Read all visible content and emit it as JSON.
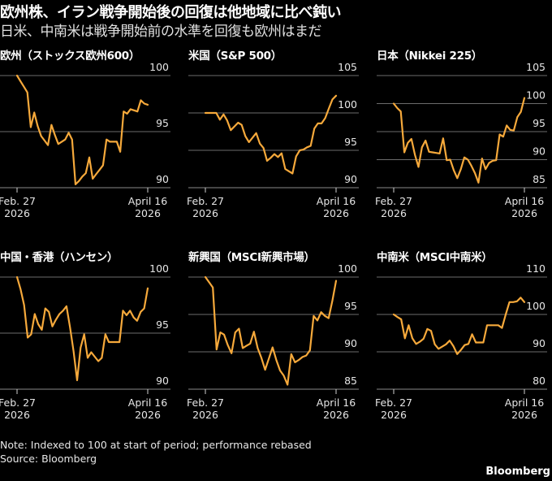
{
  "header": {
    "title": "欧州株、イラン戦争開始後の回復は他地域に比べ鈍い",
    "subtitle": "日米、中南米は戦争開始前の水準を回復も欧州はまだ"
  },
  "footer": {
    "note": "Note: Indexed to 100 at start of period; performance rebased",
    "source": "Source: Bloomberg",
    "brand": "Bloomberg"
  },
  "colors": {
    "line": "#f6a93b",
    "grid": "#6b6b6b",
    "background": "#000000"
  },
  "chart_data": [
    {
      "type": "line",
      "title": "欧州（ストックス欧州600）",
      "x_tick_labels": [
        [
          "Feb. 27",
          "2026"
        ],
        [
          "April 16",
          "2026"
        ]
      ],
      "y_ticks": [
        90,
        95,
        100
      ],
      "ylim": [
        90,
        100
      ],
      "grid": true,
      "values": [
        100,
        99.5,
        99.0,
        98.5,
        95.4,
        96.7,
        95.5,
        94.6,
        94.2,
        93.8,
        95.6,
        94.7,
        93.9,
        94.1,
        94.3,
        94.9,
        94.3,
        90.3,
        90.6,
        91.0,
        91.3,
        92.7,
        90.8,
        91.2,
        91.6,
        92.0,
        94.3,
        94.1,
        94.1,
        94.1,
        93.2,
        96.8,
        96.6,
        97.0,
        96.9,
        96.8,
        97.8,
        97.5,
        97.4
      ]
    },
    {
      "type": "line",
      "title": "米国（S&P 500）",
      "x_tick_labels": [
        [
          "Feb. 27",
          "2026"
        ],
        [
          "April 16",
          "2026"
        ]
      ],
      "y_ticks": [
        90,
        95,
        100,
        105
      ],
      "ylim": [
        90,
        105
      ],
      "grid": true,
      "values": [
        100,
        100,
        100,
        100,
        99.1,
        99.8,
        99.0,
        97.7,
        98.2,
        98.7,
        98.4,
        96.9,
        96.1,
        96.7,
        97.3,
        95.9,
        95.3,
        93.6,
        94.0,
        94.5,
        94.1,
        94.6,
        92.5,
        92.2,
        91.9,
        94.2,
        95.0,
        95.1,
        95.4,
        95.6,
        97.9,
        98.6,
        98.6,
        99.3,
        100.6,
        101.8,
        102.3
      ]
    },
    {
      "type": "line",
      "title": "日本（Nikkei 225）",
      "x_tick_labels": [
        [
          "Feb. 27",
          "2026"
        ],
        [
          "April 16",
          "2026"
        ]
      ],
      "y_ticks": [
        85,
        90,
        95,
        100,
        105
      ],
      "ylim": [
        85,
        105
      ],
      "grid": true,
      "values": [
        100,
        99.2,
        98.6,
        91.3,
        93.0,
        93.7,
        90.9,
        88.7,
        92.2,
        93.4,
        91.4,
        91.3,
        91.2,
        91.1,
        93.8,
        89.9,
        90.0,
        88.1,
        86.7,
        88.3,
        90.4,
        90.0,
        88.9,
        87.6,
        85.9,
        90.2,
        88.3,
        89.4,
        89.8,
        89.9,
        94.5,
        94.1,
        96.1,
        95.3,
        95.2,
        97.6,
        98.5,
        101.0
      ]
    },
    {
      "type": "line",
      "title": "中国・香港（ハンセン）",
      "x_tick_labels": [
        [
          "Feb. 27",
          "2026"
        ],
        [
          "April 16",
          "2026"
        ]
      ],
      "y_ticks": [
        90,
        95,
        100
      ],
      "ylim": [
        90,
        100
      ],
      "grid": true,
      "values": [
        100,
        98.9,
        97.5,
        94.6,
        94.9,
        96.7,
        95.8,
        95.3,
        97.2,
        96.9,
        95.6,
        96.2,
        96.7,
        97.0,
        97.4,
        95.5,
        93.4,
        90.8,
        93.7,
        94.9,
        92.8,
        93.3,
        92.9,
        92.5,
        92.8,
        94.9,
        94.2,
        94.2,
        94.2,
        94.2,
        97.0,
        96.6,
        97.0,
        96.4,
        96.1,
        96.9,
        97.2,
        99.0
      ]
    },
    {
      "type": "line",
      "title": "新興国（MSCI新興市場）",
      "x_tick_labels": [
        [
          "Feb. 27",
          "2026"
        ],
        [
          "April 16",
          "2026"
        ]
      ],
      "y_ticks": [
        85,
        90,
        95,
        100
      ],
      "ylim": [
        85,
        100
      ],
      "grid": true,
      "values": [
        100,
        99.3,
        98.6,
        90.3,
        92.6,
        92.3,
        90.9,
        89.8,
        92.6,
        93.1,
        90.5,
        90.8,
        91.1,
        92.7,
        90.5,
        89.2,
        87.6,
        89.1,
        90.6,
        88.9,
        87.5,
        86.8,
        85.6,
        89.7,
        88.6,
        88.9,
        89.3,
        89.5,
        90.2,
        94.8,
        94.2,
        95.3,
        94.8,
        94.5,
        96.8,
        99.5
      ]
    },
    {
      "type": "line",
      "title": "中南米（MSCI中南米）",
      "x_tick_labels": [
        [
          "Feb. 27",
          "2026"
        ],
        [
          "April 16",
          "2026"
        ]
      ],
      "y_ticks": [
        80,
        90,
        100,
        110
      ],
      "ylim": [
        80,
        110
      ],
      "grid": true,
      "values": [
        100,
        99.3,
        98.7,
        93.6,
        97.1,
        93.6,
        92.1,
        92.7,
        93.5,
        96.1,
        95.6,
        92.0,
        90.8,
        91.4,
        92.0,
        93.0,
        91.5,
        89.4,
        90.5,
        91.8,
        92.1,
        94.7,
        92.5,
        92.5,
        92.5,
        97.1,
        97.1,
        97.1,
        97.1,
        96.4,
        100.0,
        103.3,
        103.3,
        103.5,
        104.5,
        103.3
      ]
    }
  ]
}
